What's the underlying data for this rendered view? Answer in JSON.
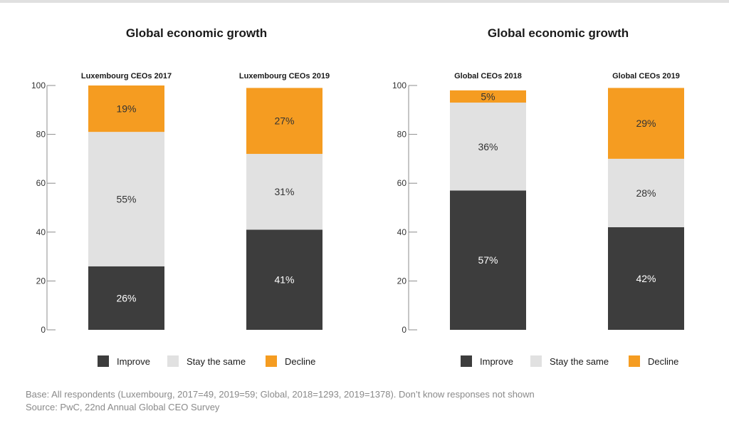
{
  "chart_data": [
    {
      "type": "bar",
      "stacked": true,
      "title": "Global economic growth",
      "categories": [
        "Luxembourg CEOs 2017",
        "Luxembourg CEOs 2019"
      ],
      "series": [
        {
          "name": "Improve",
          "values": [
            26,
            41
          ]
        },
        {
          "name": "Stay the same",
          "values": [
            55,
            31
          ]
        },
        {
          "name": "Decline",
          "values": [
            19,
            27
          ]
        }
      ],
      "yticks": [
        0,
        20,
        40,
        60,
        80,
        100
      ],
      "ylim": [
        0,
        100
      ],
      "legend": "bottom"
    },
    {
      "type": "bar",
      "stacked": true,
      "title": "Global economic growth",
      "categories": [
        "Global CEOs 2018",
        "Global CEOs 2019"
      ],
      "series": [
        {
          "name": "Improve",
          "values": [
            57,
            42
          ]
        },
        {
          "name": "Stay the same",
          "values": [
            36,
            28
          ]
        },
        {
          "name": "Decline",
          "values": [
            5,
            29
          ]
        }
      ],
      "yticks": [
        0,
        20,
        40,
        60,
        80,
        100
      ],
      "ylim": [
        0,
        100
      ],
      "legend": "bottom"
    }
  ],
  "colors": {
    "Improve": "#3d3d3d",
    "Stay the same": "#e1e1e1",
    "Decline": "#f59c21"
  },
  "value_suffix": "%",
  "footnote": {
    "base": "Base: All respondents (Luxembourg, 2017=49, 2019=59; Global, 2018=1293, 2019=1378). Don’t know responses not shown",
    "source": "Source: PwC, 22nd Annual Global CEO Survey"
  }
}
